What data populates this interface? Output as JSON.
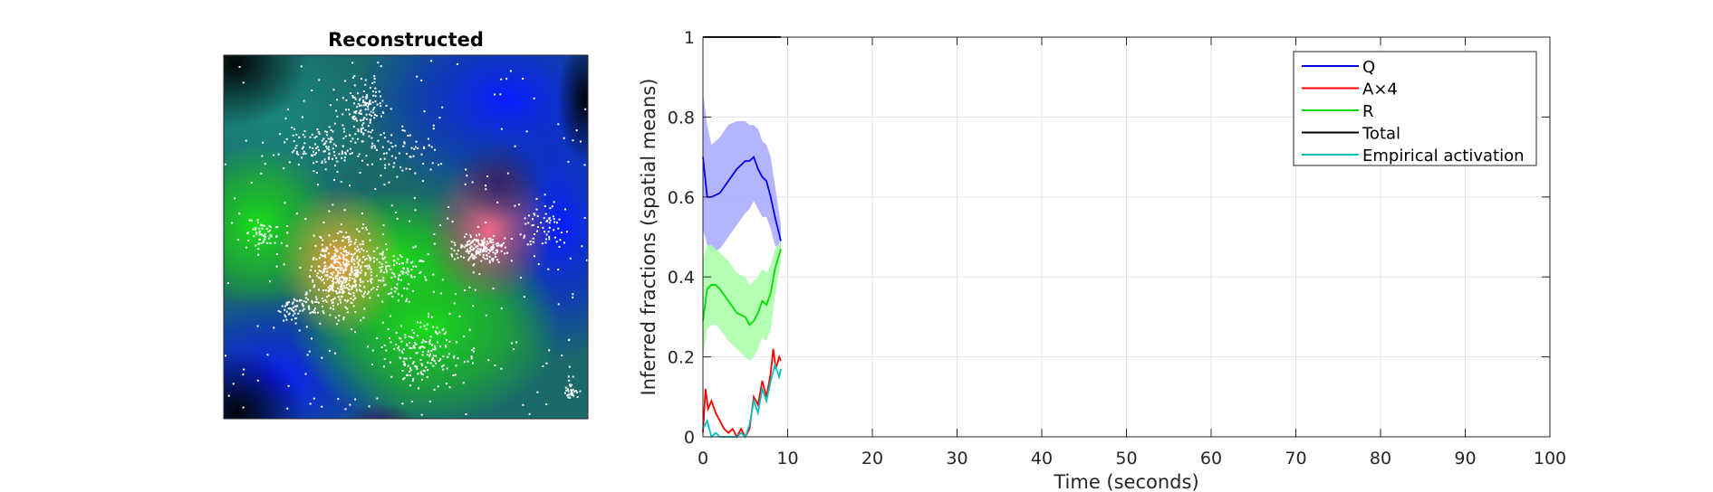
{
  "image_panel": {
    "title": "Reconstructed"
  },
  "chart_data": {
    "type": "line",
    "title": "",
    "xlabel": "Time (seconds)",
    "ylabel": "Inferred fractions (spatial means)",
    "xlim": [
      0,
      100
    ],
    "ylim": [
      0,
      1
    ],
    "xticks": [
      0,
      10,
      20,
      30,
      40,
      50,
      60,
      70,
      80,
      90,
      100
    ],
    "yticks": [
      0,
      0.2,
      0.4,
      0.6,
      0.8,
      1
    ],
    "ytick_labels": [
      "0",
      "0.2",
      "0.4",
      "0.6",
      "0.8",
      "1"
    ],
    "grid": true,
    "legend_position": "top-right",
    "series": [
      {
        "name": "Q",
        "color": "#0000ff",
        "x": [
          0,
          0.5,
          1,
          2,
          3,
          4,
          5,
          5.5,
          6,
          6.5,
          7,
          7.5,
          8,
          8.5,
          9.2
        ],
        "values": [
          0.7,
          0.6,
          0.6,
          0.61,
          0.64,
          0.67,
          0.69,
          0.69,
          0.7,
          0.67,
          0.65,
          0.64,
          0.6,
          0.55,
          0.49
        ],
        "band_upper": [
          0.86,
          0.78,
          0.73,
          0.75,
          0.78,
          0.79,
          0.79,
          0.78,
          0.78,
          0.77,
          0.74,
          0.73,
          0.7,
          0.63,
          0.53
        ],
        "band_lower": [
          0.52,
          0.48,
          0.46,
          0.47,
          0.5,
          0.53,
          0.56,
          0.57,
          0.59,
          0.57,
          0.55,
          0.55,
          0.52,
          0.48,
          0.46
        ],
        "band_color": "#a8a8ff"
      },
      {
        "name": "A×4",
        "color": "#ff0000",
        "x": [
          0,
          0.3,
          0.6,
          1,
          1.5,
          2,
          2.5,
          3,
          3.5,
          4,
          4.5,
          5,
          5.5,
          6,
          6.5,
          7,
          7.5,
          8,
          8.3,
          8.6,
          9,
          9.2
        ],
        "values": [
          0.01,
          0.12,
          0.07,
          0.09,
          0.06,
          0.04,
          0.02,
          0.01,
          0.02,
          0.0,
          0.02,
          0.0,
          0.02,
          0.1,
          0.08,
          0.14,
          0.1,
          0.16,
          0.22,
          0.17,
          0.2,
          0.19
        ]
      },
      {
        "name": "R",
        "color": "#00e000",
        "x": [
          0,
          0.5,
          1,
          1.5,
          2,
          3,
          4,
          5,
          5.5,
          6,
          6.5,
          7,
          7.5,
          8,
          8.5,
          9.2
        ],
        "values": [
          0.29,
          0.37,
          0.38,
          0.38,
          0.37,
          0.34,
          0.31,
          0.3,
          0.28,
          0.29,
          0.31,
          0.34,
          0.33,
          0.36,
          0.42,
          0.47
        ],
        "band_upper": [
          0.45,
          0.48,
          0.48,
          0.47,
          0.46,
          0.44,
          0.41,
          0.4,
          0.38,
          0.39,
          0.4,
          0.42,
          0.41,
          0.43,
          0.47,
          0.49
        ],
        "band_lower": [
          0.2,
          0.27,
          0.28,
          0.28,
          0.27,
          0.24,
          0.22,
          0.2,
          0.19,
          0.2,
          0.22,
          0.25,
          0.24,
          0.27,
          0.35,
          0.44
        ],
        "band_color": "#a8ffa8"
      },
      {
        "name": "Total",
        "color": "#000000",
        "x": [
          0,
          9.2
        ],
        "values": [
          1,
          1
        ]
      },
      {
        "name": "Empirical activation",
        "color": "#00c0c0",
        "x": [
          0,
          0.5,
          1,
          1.5,
          2,
          3,
          4,
          4.5,
          5,
          5.5,
          6,
          6.5,
          7,
          7.5,
          8,
          8.5,
          9,
          9.2
        ],
        "values": [
          0.02,
          0.04,
          0.0,
          0.01,
          0.0,
          0.0,
          0.0,
          0.01,
          0.0,
          0.03,
          0.09,
          0.06,
          0.12,
          0.09,
          0.14,
          0.18,
          0.15,
          0.17
        ]
      }
    ]
  }
}
